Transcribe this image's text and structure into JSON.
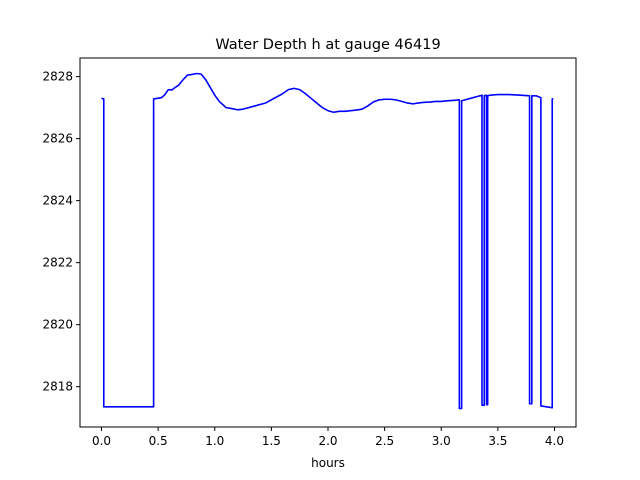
{
  "chart_data": {
    "type": "line",
    "title": "Water Depth h at gauge 46419",
    "xlabel": "hours",
    "ylabel": "",
    "xlim": [
      -0.19,
      4.19
    ],
    "ylim": [
      2816.7,
      2828.6
    ],
    "xticks": [
      0.0,
      0.5,
      1.0,
      1.5,
      2.0,
      2.5,
      3.0,
      3.5,
      4.0
    ],
    "xtick_labels": [
      "0.0",
      "0.5",
      "1.0",
      "1.5",
      "2.0",
      "2.5",
      "3.0",
      "3.5",
      "4.0"
    ],
    "yticks": [
      2818,
      2820,
      2822,
      2824,
      2826,
      2828
    ],
    "ytick_labels": [
      "2818",
      "2820",
      "2822",
      "2824",
      "2826",
      "2828"
    ],
    "grid": false,
    "legend": "none",
    "series": [
      {
        "name": "",
        "color": "#0000ff",
        "x": [
          0.0,
          0.02,
          0.02,
          0.46,
          0.46,
          0.53,
          0.56,
          0.59,
          0.62,
          0.65,
          0.68,
          0.72,
          0.76,
          0.8,
          0.84,
          0.88,
          0.92,
          0.96,
          1.0,
          1.04,
          1.1,
          1.15,
          1.2,
          1.25,
          1.3,
          1.35,
          1.4,
          1.45,
          1.5,
          1.55,
          1.6,
          1.65,
          1.7,
          1.75,
          1.8,
          1.85,
          1.9,
          1.95,
          2.0,
          2.05,
          2.1,
          2.15,
          2.2,
          2.25,
          2.3,
          2.35,
          2.4,
          2.45,
          2.5,
          2.55,
          2.6,
          2.65,
          2.7,
          2.75,
          2.8,
          2.85,
          2.9,
          2.95,
          3.0,
          3.05,
          3.1,
          3.16,
          3.16,
          3.18,
          3.18,
          3.21,
          3.26,
          3.31,
          3.36,
          3.36,
          3.38,
          3.38,
          3.4,
          3.4,
          3.41,
          3.41,
          3.43,
          3.5,
          3.6,
          3.7,
          3.78,
          3.78,
          3.8,
          3.8,
          3.84,
          3.88,
          3.88,
          3.93,
          3.98,
          3.98,
          3.99
        ],
        "y": [
          2827.3,
          2827.28,
          2817.35,
          2817.35,
          2827.28,
          2827.32,
          2827.42,
          2827.58,
          2827.57,
          2827.65,
          2827.72,
          2827.9,
          2828.05,
          2828.07,
          2828.1,
          2828.08,
          2827.9,
          2827.65,
          2827.4,
          2827.2,
          2827.0,
          2826.97,
          2826.93,
          2826.95,
          2827.0,
          2827.05,
          2827.1,
          2827.15,
          2827.25,
          2827.35,
          2827.45,
          2827.58,
          2827.62,
          2827.58,
          2827.45,
          2827.3,
          2827.15,
          2827.0,
          2826.9,
          2826.85,
          2826.88,
          2826.88,
          2826.9,
          2826.92,
          2826.95,
          2827.05,
          2827.18,
          2827.25,
          2827.27,
          2827.27,
          2827.25,
          2827.2,
          2827.15,
          2827.12,
          2827.15,
          2827.17,
          2827.18,
          2827.2,
          2827.2,
          2827.22,
          2827.23,
          2827.25,
          2817.3,
          2817.3,
          2827.22,
          2827.25,
          2827.3,
          2827.35,
          2827.4,
          2817.4,
          2817.4,
          2827.38,
          2827.4,
          2817.42,
          2817.42,
          2827.38,
          2827.4,
          2827.42,
          2827.42,
          2827.4,
          2827.38,
          2817.45,
          2817.45,
          2827.38,
          2827.38,
          2827.32,
          2817.38,
          2817.35,
          2817.32,
          2827.28,
          2827.28
        ]
      }
    ]
  }
}
